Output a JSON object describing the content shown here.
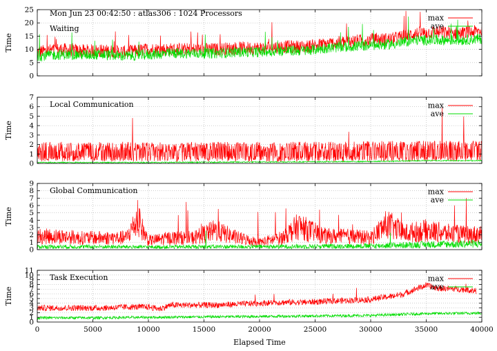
{
  "header": {
    "title": "Mon Jun 23 00:42:50 : atlas306 : 1024 Processors"
  },
  "legend": {
    "max_label": "max",
    "ave_label": "ave"
  },
  "colors": {
    "max": "#ff0000",
    "ave": "#00dd00",
    "grid": "#b0b0b0",
    "frame": "#000000"
  },
  "x_axis": {
    "label": "Elapsed Time",
    "range": [
      0,
      40000
    ],
    "ticks": [
      0,
      5000,
      10000,
      15000,
      20000,
      25000,
      30000,
      35000,
      40000
    ],
    "tick_labels": [
      "0",
      "5000",
      "10000",
      "15000",
      "20000",
      "25000",
      "30000",
      "35000",
      "40000"
    ]
  },
  "chart_data": [
    {
      "type": "line",
      "title": "Waiting",
      "ylabel": "Time",
      "xlim": [
        0,
        40000
      ],
      "ylim": [
        0,
        25
      ],
      "yticks": [
        0,
        5,
        10,
        15,
        20,
        25
      ],
      "ytick_labels": [
        "0",
        "5",
        "10",
        "15",
        "20",
        "25"
      ],
      "grid": true,
      "legend_position": "top-right",
      "series": [
        {
          "name": "max",
          "x": [
            0,
            2000,
            4000,
            6000,
            8000,
            10000,
            12000,
            14000,
            16000,
            18000,
            20000,
            22000,
            24000,
            26000,
            28000,
            30000,
            32000,
            34000,
            36000,
            38000,
            40000
          ],
          "values": [
            9,
            10,
            9.5,
            9.5,
            9,
            10,
            10,
            10,
            10,
            10.5,
            10.5,
            11,
            11,
            12,
            13,
            13.5,
            14,
            16,
            16.5,
            16,
            17
          ]
        },
        {
          "name": "ave",
          "x": [
            0,
            2000,
            4000,
            6000,
            8000,
            10000,
            12000,
            14000,
            16000,
            18000,
            20000,
            22000,
            24000,
            26000,
            28000,
            30000,
            32000,
            34000,
            36000,
            38000,
            40000
          ],
          "values": [
            7.5,
            8,
            8,
            8,
            7.5,
            8,
            8.5,
            8.5,
            8.5,
            9,
            9,
            9.5,
            9.5,
            10.5,
            11,
            11.5,
            12,
            13.5,
            13.5,
            13.5,
            14
          ]
        }
      ]
    },
    {
      "type": "line",
      "title": "Local Communication",
      "ylabel": "Time",
      "xlim": [
        0,
        40000
      ],
      "ylim": [
        0,
        7
      ],
      "yticks": [
        0,
        1,
        2,
        3,
        4,
        5,
        6,
        7
      ],
      "ytick_labels": [
        "0",
        "1",
        "2",
        "3",
        "4",
        "5",
        "6",
        "7"
      ],
      "grid": true,
      "legend_position": "top-right",
      "series": [
        {
          "name": "max",
          "x": [
            0,
            2000,
            4000,
            6000,
            8000,
            10000,
            12000,
            14000,
            16000,
            18000,
            20000,
            22000,
            24000,
            26000,
            28000,
            30000,
            32000,
            34000,
            36000,
            38000,
            40000
          ],
          "values": [
            1.2,
            1.2,
            1.1,
            1.2,
            1.2,
            1.2,
            1.1,
            1.2,
            1.2,
            1.2,
            1.2,
            1.2,
            1.2,
            1.2,
            1.2,
            1.3,
            1.3,
            1.3,
            1.3,
            1.3,
            1.3
          ]
        },
        {
          "name": "ave",
          "x": [
            0,
            10000,
            20000,
            30000,
            35000,
            40000
          ],
          "values": [
            0.1,
            0.1,
            0.15,
            0.2,
            0.3,
            0.3
          ]
        }
      ]
    },
    {
      "type": "line",
      "title": "Global Communication",
      "ylabel": "Time",
      "xlim": [
        0,
        40000
      ],
      "ylim": [
        0,
        9
      ],
      "yticks": [
        0,
        1,
        2,
        3,
        4,
        5,
        6,
        7,
        8,
        9
      ],
      "ytick_labels": [
        "0",
        "1",
        "2",
        "3",
        "4",
        "5",
        "6",
        "7",
        "8",
        "9"
      ],
      "grid": true,
      "legend_position": "top-right",
      "series": [
        {
          "name": "max",
          "x": [
            0,
            2000,
            4000,
            6000,
            8000,
            9000,
            10000,
            12000,
            14000,
            16000,
            18000,
            20000,
            22000,
            23500,
            24500,
            26000,
            28000,
            30000,
            31500,
            33000,
            35000,
            37000,
            39000,
            40000
          ],
          "values": [
            1.8,
            1.8,
            1.6,
            1.6,
            1.6,
            4.0,
            1.2,
            1.6,
            1.6,
            2.6,
            1.6,
            1.0,
            1.6,
            3.2,
            2.6,
            1.8,
            1.8,
            1.6,
            3.5,
            2.2,
            2.6,
            2.2,
            2.0,
            2.2
          ]
        },
        {
          "name": "ave",
          "x": [
            0,
            5000,
            10000,
            15000,
            20000,
            25000,
            30000,
            35000,
            40000
          ],
          "values": [
            0.4,
            0.4,
            0.35,
            0.4,
            0.4,
            0.45,
            0.5,
            0.7,
            0.8
          ]
        }
      ]
    },
    {
      "type": "line",
      "title": "Task Execution",
      "ylabel": "Time",
      "xlim": [
        0,
        40000
      ],
      "ylim": [
        0,
        11
      ],
      "yticks": [
        0,
        1,
        2,
        3,
        4,
        5,
        6,
        7,
        8,
        9,
        10,
        11
      ],
      "ytick_labels": [
        "0",
        "1",
        "2",
        "3",
        "4",
        "5",
        "6",
        "7",
        "8",
        "9",
        "10",
        "11"
      ],
      "grid": true,
      "legend_position": "top-right",
      "series": [
        {
          "name": "max",
          "x": [
            0,
            2000,
            4000,
            6000,
            8000,
            10000,
            11000,
            12000,
            14000,
            16000,
            18000,
            20000,
            22000,
            24000,
            26000,
            28000,
            30000,
            31000,
            32000,
            33000,
            34000,
            35000,
            36000,
            38000,
            39500
          ],
          "values": [
            3.0,
            3.0,
            3.0,
            3.0,
            3.2,
            3.2,
            2.8,
            3.6,
            3.6,
            3.6,
            3.8,
            4.0,
            4.2,
            4.2,
            4.4,
            4.6,
            4.8,
            5.2,
            5.5,
            6.0,
            7.0,
            7.8,
            7.2,
            7.0,
            6.6
          ]
        },
        {
          "name": "ave",
          "x": [
            0,
            5000,
            10000,
            15000,
            20000,
            25000,
            30000,
            35000,
            40000
          ],
          "values": [
            0.9,
            0.9,
            1.0,
            1.1,
            1.2,
            1.3,
            1.4,
            1.8,
            1.9
          ]
        }
      ]
    }
  ]
}
